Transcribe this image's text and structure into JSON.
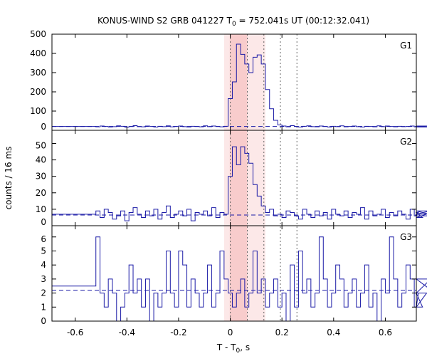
{
  "chart_data": {
    "type": "line",
    "title": {
      "pre": "KONUS-WIND S2 GRB 041227 T",
      "sub": "0",
      "post": " = 752.041s UT (00:12:32.041)"
    },
    "xlabel": {
      "pre": "T - T",
      "sub": "0",
      "post": ", s"
    },
    "ylabel": "counts / 16 ms",
    "xlim": [
      -0.69,
      0.72
    ],
    "x_ticks": [
      -0.6,
      -0.4,
      -0.2,
      0,
      0.2,
      0.4,
      0.6
    ],
    "x_tick_labels": [
      "-0.6",
      "-0.4",
      "-0.2",
      "0",
      "0.2",
      "0.4",
      "0.6"
    ],
    "grid": false,
    "shaded_interval": [
      -0.024,
      0.136
    ],
    "shaded_interval_inner": [
      -0.002,
      0.066
    ],
    "vertical_dotted_lines": [
      0,
      0.066,
      0.13,
      0.194,
      0.258
    ],
    "colors": {
      "histogram": "#1a1aa6",
      "shade_outer": "#fce8e8",
      "shade_inner": "#f8cccc",
      "marker_line": "#666666"
    },
    "panels": [
      {
        "name": "G1",
        "ylim": [
          0,
          500
        ],
        "yticks": [
          0,
          100,
          200,
          300,
          400,
          500
        ],
        "background_level": 20,
        "x_start": -0.52,
        "bin_width": 0.016,
        "pre_level": 20,
        "values": [
          18,
          22,
          20,
          17,
          19,
          23,
          21,
          16,
          20,
          24,
          19,
          18,
          22,
          20,
          17,
          21,
          19,
          23,
          18,
          20,
          22,
          19,
          17,
          21,
          20,
          18,
          23,
          19,
          22,
          20,
          18,
          21,
          165,
          252,
          448,
          395,
          345,
          300,
          380,
          392,
          345,
          212,
          112,
          52,
          28,
          22,
          18,
          24,
          20,
          17,
          21,
          23,
          19,
          18,
          22,
          20,
          17,
          21,
          19,
          23,
          18,
          20,
          22,
          19,
          17,
          21,
          20,
          18,
          23,
          19,
          22,
          20,
          18,
          21,
          19,
          20,
          22,
          18,
          20,
          21,
          19,
          22,
          17
        ]
      },
      {
        "name": "G2",
        "ylim": [
          0,
          58
        ],
        "yticks": [
          0,
          10,
          20,
          30,
          40,
          50
        ],
        "background_level": 6.5,
        "x_start": -0.52,
        "bin_width": 0.016,
        "pre_level": 7,
        "values": [
          9,
          5,
          10,
          8,
          4,
          6,
          9,
          3,
          8,
          11,
          7,
          5,
          9,
          6,
          10,
          4,
          8,
          12,
          5,
          7,
          9,
          6,
          10,
          3,
          8,
          7,
          9,
          6,
          11,
          5,
          8,
          7,
          30,
          48,
          37,
          48,
          44,
          38,
          25,
          18,
          12,
          8,
          10,
          6,
          7,
          5,
          9,
          8,
          6,
          4,
          10,
          7,
          5,
          9,
          6,
          8,
          4,
          10,
          7,
          6,
          9,
          5,
          8,
          7,
          11,
          4,
          9,
          6,
          7,
          10,
          5,
          8,
          6,
          9,
          7,
          4,
          10,
          6,
          8,
          5,
          7,
          9,
          6
        ]
      },
      {
        "name": "G3",
        "ylim": [
          0,
          6.8
        ],
        "yticks": [
          0,
          1,
          2,
          3,
          4,
          5,
          6
        ],
        "background_level": 2.2,
        "x_start": -0.52,
        "bin_width": 0.016,
        "pre_level": 2.5,
        "values": [
          6,
          2,
          1,
          3,
          2,
          0,
          1,
          2,
          4,
          2,
          3,
          1,
          3,
          0,
          2,
          1,
          2,
          5,
          2,
          1,
          5,
          4,
          1,
          3,
          2,
          1,
          2,
          4,
          1,
          2,
          5,
          3,
          2,
          1,
          2,
          3,
          1,
          2,
          5,
          2,
          3,
          1,
          2,
          3,
          1,
          2,
          0,
          4,
          1,
          5,
          2,
          3,
          1,
          2,
          6,
          3,
          1,
          2,
          4,
          3,
          1,
          2,
          3,
          1,
          2,
          4,
          1,
          2,
          0,
          3,
          2,
          6,
          3,
          1,
          2,
          4,
          3,
          1,
          2,
          1,
          2,
          3,
          2
        ]
      }
    ]
  }
}
